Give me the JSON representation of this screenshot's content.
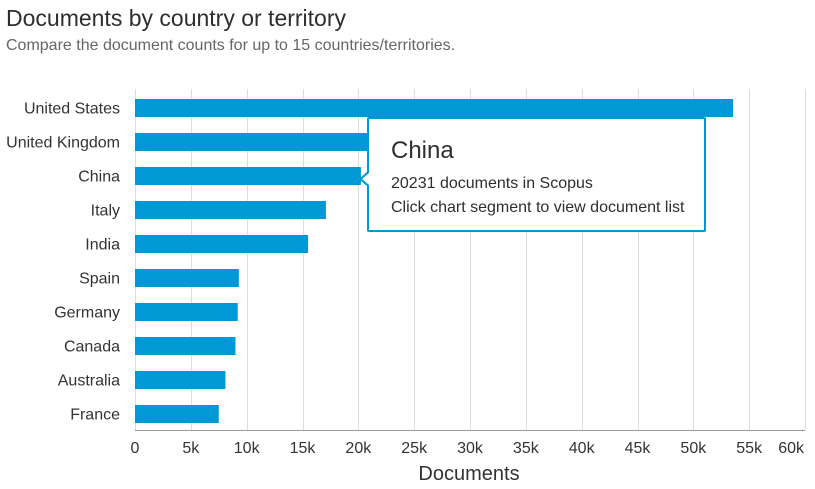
{
  "page": {
    "title": "Documents by country or territory",
    "subtitle": "Compare the document counts for up to 15 countries/territories."
  },
  "tooltip": {
    "title": "China",
    "line1": "20231 documents in Scopus",
    "line2": "Click chart segment to view document list"
  },
  "chart_data": {
    "type": "bar",
    "orientation": "horizontal",
    "categories": [
      "United States",
      "United Kingdom",
      "China",
      "Italy",
      "India",
      "Spain",
      "Germany",
      "Canada",
      "Australia",
      "France"
    ],
    "values": [
      53560,
      21000,
      20231,
      17100,
      15500,
      9300,
      9200,
      9000,
      8100,
      7500
    ],
    "xlabel": "Documents",
    "ylabel": "",
    "xlim": [
      0,
      60000
    ],
    "xticks": [
      0,
      5000,
      10000,
      15000,
      20000,
      25000,
      30000,
      35000,
      40000,
      45000,
      50000,
      55000,
      60000
    ],
    "xtick_labels": [
      "0",
      "5k",
      "10k",
      "15k",
      "20k",
      "25k",
      "30k",
      "35k",
      "40k",
      "45k",
      "50k",
      "55k",
      "60k"
    ],
    "grid": true,
    "bar_color": "#0099d5",
    "grid_color": "#dddddd"
  }
}
